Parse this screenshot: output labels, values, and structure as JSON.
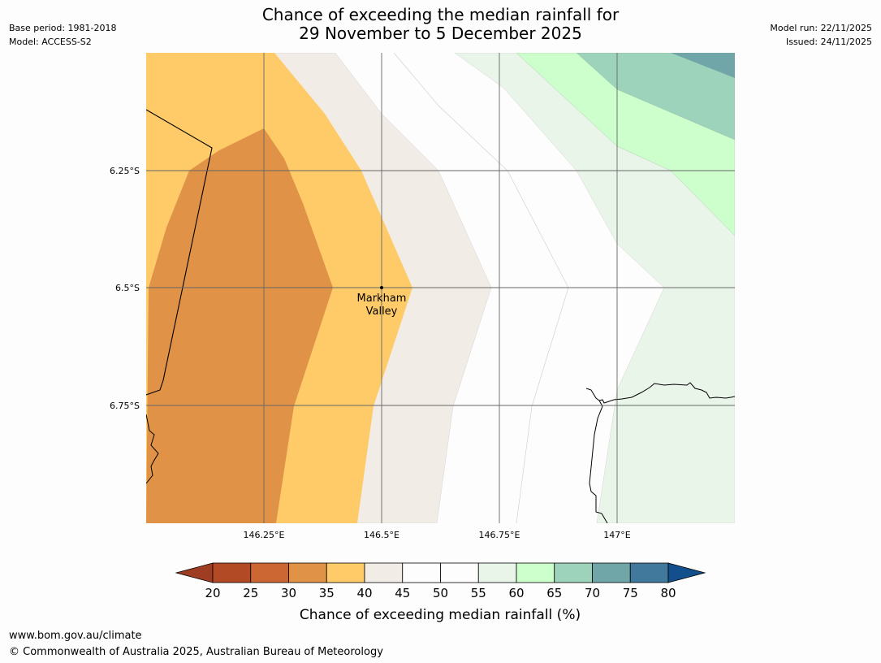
{
  "title_line1": "Chance of exceeding the median rainfall for",
  "title_line2": "29 November to 5 December 2025",
  "meta_left": {
    "base_period": "Base period: 1981-2018",
    "model": "Model: ACCESS-S2"
  },
  "meta_right": {
    "model_run": "Model run: 22/11/2025",
    "issued": "Issued: 24/11/2025"
  },
  "map": {
    "lat_labels": [
      "6.25°S",
      "6.5°S",
      "6.75°S"
    ],
    "lon_labels": [
      "146.25°E",
      "146.5°E",
      "146.75°E",
      "147°E"
    ],
    "place": {
      "name_line1": "Markham",
      "name_line2": "Valley"
    }
  },
  "colorbar": {
    "ticks": [
      "20",
      "25",
      "30",
      "35",
      "40",
      "45",
      "50",
      "55",
      "60",
      "65",
      "70",
      "75",
      "80"
    ],
    "label": "Chance of exceeding median rainfall (%)",
    "colors": {
      "under": "#9e3d22",
      "bins": [
        "#b34a26",
        "#cc6633",
        "#e09347",
        "#fecb68",
        "#f2ece6",
        "#fdfdfd",
        "#fdfdfd",
        "#eaf5ea",
        "#ccffcc",
        "#9ed3bb",
        "#70a6a8",
        "#40799b"
      ],
      "over": "#134f8c"
    }
  },
  "footer": {
    "url": "www.bom.gov.au/climate",
    "copyright": "© Commonwealth of Australia 2025, Australian Bureau of Meteorology"
  }
}
